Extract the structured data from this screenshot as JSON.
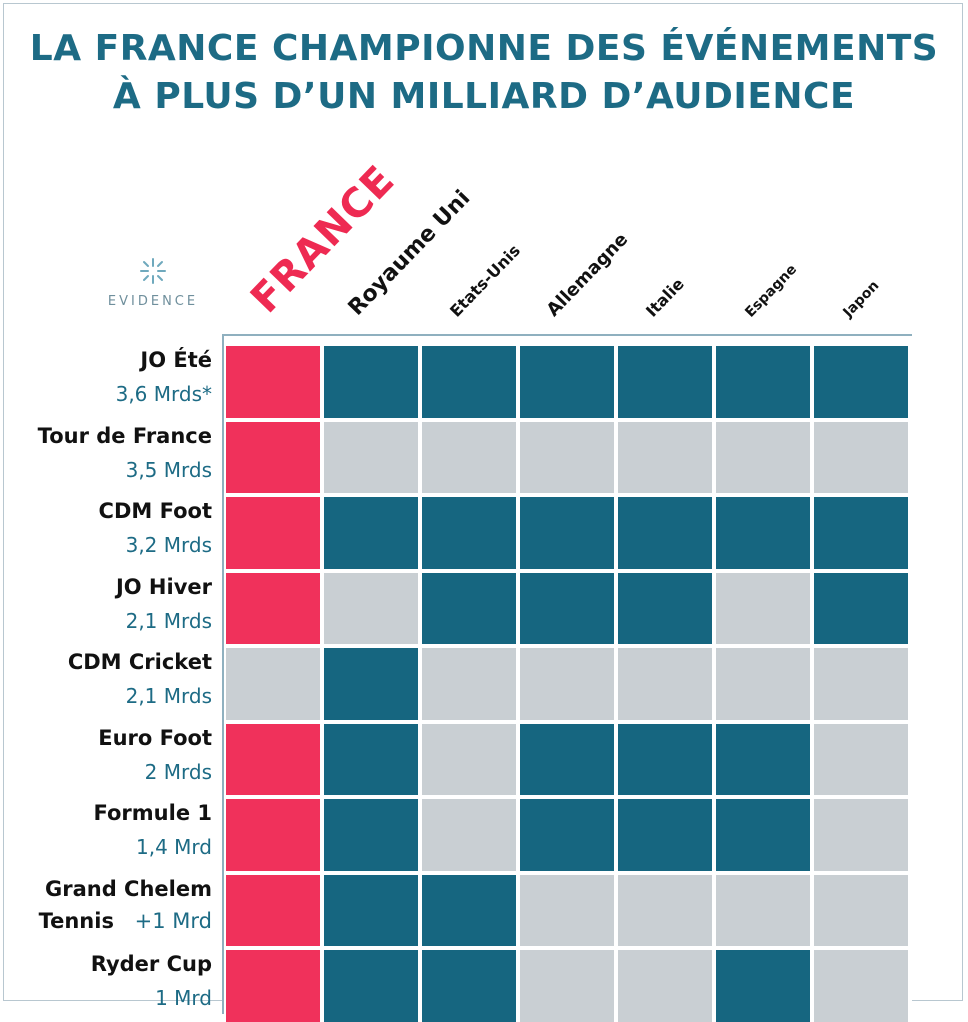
{
  "title_line1": "LA FRANCE CHAMPIONNE DES ÉVÉNEMENTS",
  "title_line2": "À PLUS D’UN MILLIARD D’AUDIENCE",
  "logo": {
    "text": "EVIDENCE",
    "icon": "sparkle-burst-icon"
  },
  "colors": {
    "highlight": "#f0315b",
    "yes": "#166680",
    "no": "#c9cfd3",
    "title": "#1d6b85",
    "audience": "#1d6b85"
  },
  "chart_data": {
    "type": "heatmap",
    "title": "LA FRANCE CHAMPIONNE DES ÉVÉNEMENTS À PLUS D’UN MILLIARD D’AUDIENCE",
    "columns": [
      "FRANCE",
      "Royaume Uni",
      "Etats-Unis",
      "Allemagne",
      "Italie",
      "Espagne",
      "Japon"
    ],
    "highlight_column": "FRANCE",
    "rows": [
      {
        "event": "JO Été",
        "audience": "3,6 Mrds*",
        "hosted": [
          1,
          1,
          1,
          1,
          1,
          1,
          1
        ]
      },
      {
        "event": "Tour de France",
        "audience": "3,5 Mrds",
        "hosted": [
          1,
          0,
          0,
          0,
          0,
          0,
          0
        ]
      },
      {
        "event": "CDM Foot",
        "audience": "3,2 Mrds",
        "hosted": [
          1,
          1,
          1,
          1,
          1,
          1,
          1
        ]
      },
      {
        "event": "JO Hiver",
        "audience": "2,1 Mrds",
        "hosted": [
          1,
          0,
          1,
          1,
          1,
          0,
          1
        ]
      },
      {
        "event": "CDM Cricket",
        "audience": "2,1 Mrds",
        "hosted": [
          0,
          1,
          0,
          0,
          0,
          0,
          0
        ]
      },
      {
        "event": "Euro Foot",
        "audience": "2 Mrds",
        "hosted": [
          1,
          1,
          0,
          1,
          1,
          1,
          0
        ]
      },
      {
        "event": "Formule 1",
        "audience": "1,4 Mrd",
        "hosted": [
          1,
          1,
          0,
          1,
          1,
          1,
          0
        ]
      },
      {
        "event": "Grand Chelem Tennis",
        "audience": "+1 Mrd",
        "hosted": [
          1,
          1,
          1,
          0,
          0,
          0,
          0
        ]
      },
      {
        "event": "Ryder Cup",
        "audience": "1 Mrd",
        "hosted": [
          1,
          1,
          1,
          0,
          0,
          1,
          0
        ]
      }
    ]
  }
}
